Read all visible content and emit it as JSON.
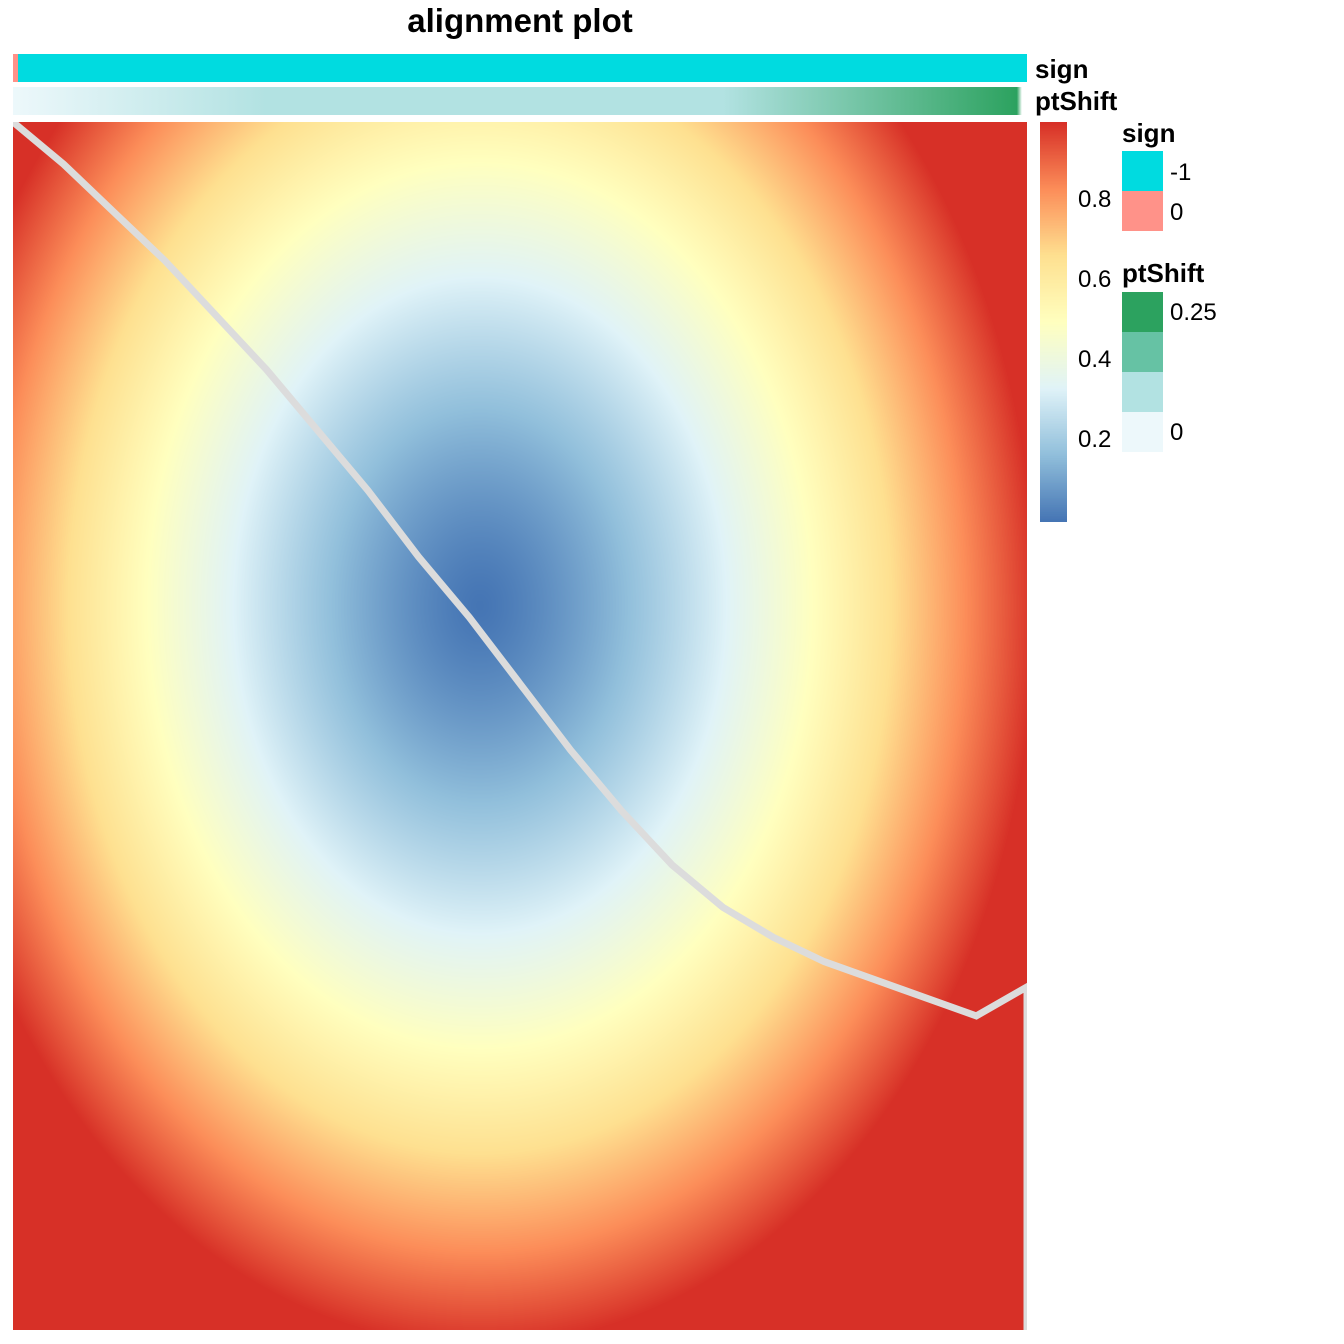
{
  "chart_data": {
    "type": "heatmap",
    "title": "alignment plot",
    "xlabel": "",
    "ylabel": "",
    "grid": false,
    "value_range": [
      0,
      1
    ],
    "colorbar": {
      "ticks": [
        "0.8",
        "0.6",
        "0.4",
        "0.2"
      ],
      "tick_values": [
        0.8,
        0.6,
        0.4,
        0.2
      ],
      "colors": [
        "#4575b4",
        "#91bfdb",
        "#e0f3f8",
        "#ffffbf",
        "#fee090",
        "#fc8d59",
        "#d73027"
      ]
    },
    "alignment_path": {
      "x_fraction": [
        0.0,
        0.05,
        0.1,
        0.15,
        0.2,
        0.25,
        0.3,
        0.35,
        0.4,
        0.45,
        0.5,
        0.55,
        0.6,
        0.65,
        0.7,
        0.75,
        0.8,
        0.85,
        0.9,
        0.95,
        1.0,
        1.0
      ],
      "y_fraction": [
        0.0,
        0.035,
        0.075,
        0.115,
        0.16,
        0.205,
        0.255,
        0.305,
        0.36,
        0.41,
        0.465,
        0.52,
        0.57,
        0.615,
        0.65,
        0.675,
        0.695,
        0.71,
        0.725,
        0.74,
        0.716,
        1.0
      ],
      "color": "#dcdcdc"
    },
    "annotations": [
      {
        "name": "sign",
        "label": "sign"
      },
      {
        "name": "ptShift",
        "label": "ptShift"
      }
    ]
  },
  "annotation_labels": {
    "sign": "sign",
    "ptShift": "ptShift"
  },
  "legend": {
    "sign": {
      "title": "sign",
      "items": [
        {
          "label": "-1",
          "color": "#00dbe0"
        },
        {
          "label": "0",
          "color": "#ff9289"
        }
      ]
    },
    "ptShift": {
      "title": "ptShift",
      "colors": [
        "#2ca25f",
        "#66c2a4",
        "#b2e2e2",
        "#edf8fb"
      ],
      "labels": [
        "0.25",
        "0"
      ]
    }
  },
  "colors": {
    "sign_neg": "#00dbe0",
    "sign_zero": "#ff9289",
    "ptshift_low": "#edf8fb",
    "ptshift_mid": "#b2e2e2",
    "ptshift_high": "#2ca25f"
  }
}
